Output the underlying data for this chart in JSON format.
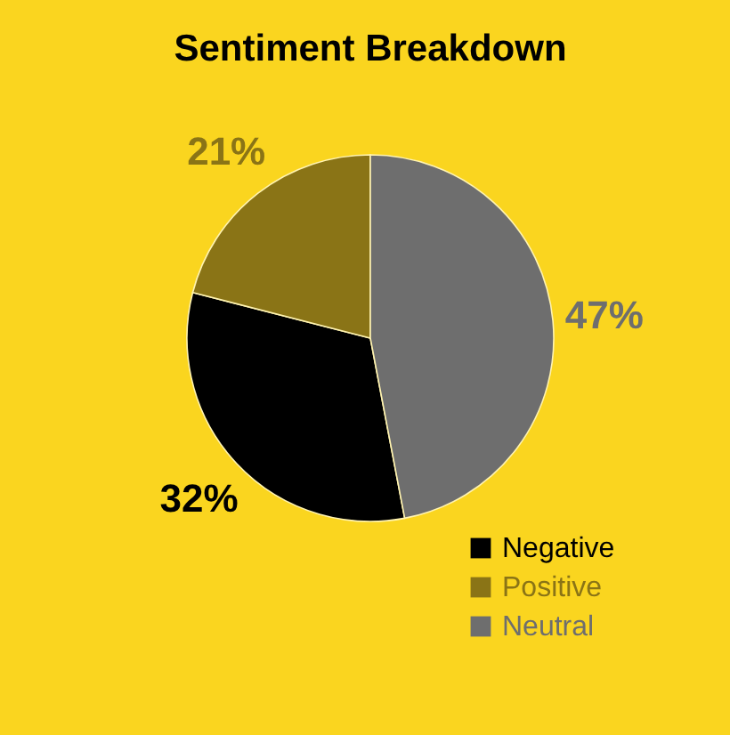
{
  "chart_data": {
    "type": "pie",
    "title": "Sentiment Breakdown",
    "categories": [
      "Negative",
      "Positive",
      "Neutral"
    ],
    "values": [
      32,
      21,
      47
    ],
    "value_labels": [
      "32%",
      "21%",
      "47%"
    ],
    "colors": [
      "#000000",
      "#8a7416",
      "#6e6e6e"
    ],
    "legend": "bottom right"
  }
}
